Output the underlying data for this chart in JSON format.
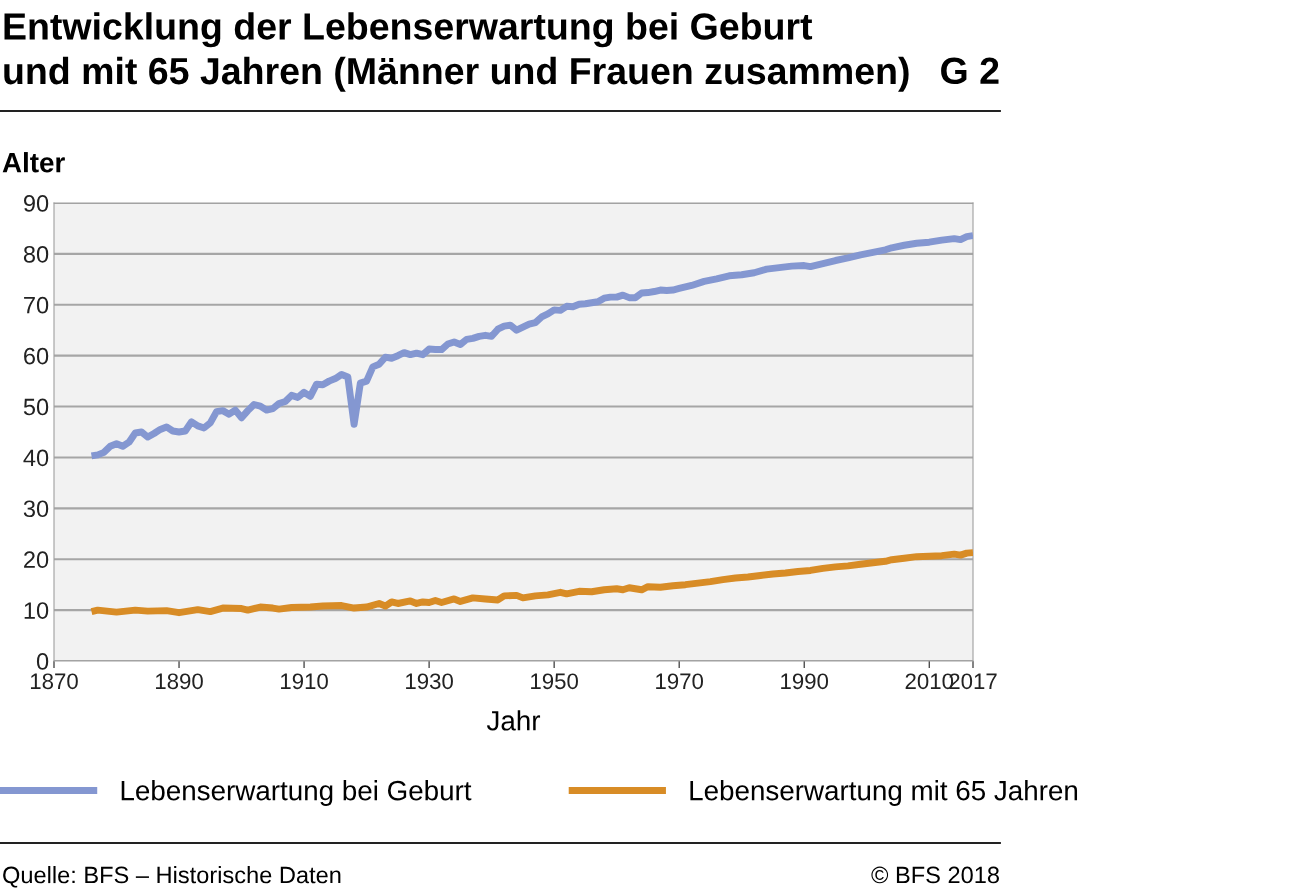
{
  "chart_data": {
    "type": "line",
    "title": "Entwicklung der Lebenserwartung bei Geburt\nund mit 65 Jahren (Männer und Frauen zusammen)",
    "xlabel": "Jahr",
    "ylabel": "Alter",
    "annotations": [
      "G 2",
      "Quelle: BFS – Historische Daten",
      "© BFS 2018"
    ],
    "xlim": [
      1870,
      2017
    ],
    "xticks": [
      1870,
      1890,
      1910,
      1930,
      1950,
      1970,
      1990,
      2010,
      2017
    ],
    "ylim": [
      0,
      90
    ],
    "yticks": [
      0,
      10,
      20,
      30,
      40,
      50,
      60,
      70,
      80,
      90
    ],
    "grid": "y",
    "legend": "bottom",
    "marker": "none",
    "line_style": "solid",
    "series": [
      {
        "name": "Lebenserwartung bei Geburt",
        "color": "#8497d1",
        "x": [
          1876,
          1877,
          1878,
          1879,
          1880,
          1881,
          1882,
          1883,
          1884,
          1885,
          1886,
          1887,
          1888,
          1889,
          1890,
          1891,
          1892,
          1893,
          1894,
          1895,
          1896,
          1897,
          1898,
          1899,
          1900,
          1901,
          1902,
          1903,
          1904,
          1905,
          1906,
          1907,
          1908,
          1909,
          1910,
          1911,
          1912,
          1913,
          1914,
          1915,
          1916,
          1917,
          1918,
          1919,
          1920,
          1921,
          1922,
          1923,
          1924,
          1925,
          1926,
          1927,
          1928,
          1929,
          1930,
          1931,
          1932,
          1933,
          1934,
          1935,
          1936,
          1937,
          1938,
          1939,
          1940,
          1941,
          1942,
          1943,
          1944,
          1945,
          1946,
          1947,
          1948,
          1949,
          1950,
          1951,
          1952,
          1953,
          1954,
          1955,
          1956,
          1957,
          1958,
          1959,
          1960,
          1961,
          1962,
          1963,
          1964,
          1965,
          1966,
          1967,
          1968,
          1969,
          1970,
          1972,
          1974,
          1976,
          1978,
          1980,
          1982,
          1984,
          1986,
          1988,
          1990,
          1991,
          1993,
          1995,
          1997,
          1999,
          2001,
          2003,
          2004,
          2006,
          2008,
          2010,
          2012,
          2014,
          2015,
          2016,
          2017
        ],
        "values": [
          40.3,
          40.5,
          41,
          42.2,
          42.7,
          42.2,
          43,
          44.8,
          45,
          44,
          44.7,
          45.5,
          46,
          45.2,
          45,
          45.2,
          47,
          46.2,
          45.8,
          46.8,
          49,
          49.2,
          48.5,
          49.3,
          47.8,
          49.2,
          50.4,
          50.1,
          49.3,
          49.6,
          50.6,
          51,
          52.2,
          51.8,
          52.8,
          52,
          54.4,
          54.3,
          55,
          55.5,
          56.3,
          55.8,
          46.5,
          54.6,
          55,
          57.8,
          58.3,
          59.7,
          59.5,
          60,
          60.6,
          60.2,
          60.5,
          60.2,
          61.3,
          61.2,
          61.2,
          62.3,
          62.7,
          62.2,
          63.2,
          63.4,
          63.8,
          64,
          63.8,
          65.2,
          65.8,
          66,
          65,
          65.6,
          66.2,
          66.5,
          67.6,
          68.2,
          69,
          68.9,
          69.7,
          69.6,
          70.1,
          70.2,
          70.4,
          70.6,
          71.3,
          71.5,
          71.5,
          71.9,
          71.4,
          71.4,
          72.3,
          72.4,
          72.6,
          72.9,
          72.8,
          72.9,
          73.2,
          73.8,
          74.6,
          75.1,
          75.7,
          75.9,
          76.3,
          77,
          77.3,
          77.6,
          77.7,
          77.5,
          78.1,
          78.7,
          79.2,
          79.8,
          80.3,
          80.8,
          81.2,
          81.7,
          82.1,
          82.3,
          82.7,
          83,
          82.8,
          83.4,
          83.6
        ]
      },
      {
        "name": "Lebenserwartung mit 65 Jahren",
        "color": "#d88c26",
        "x": [
          1876,
          1877,
          1880,
          1883,
          1885,
          1888,
          1890,
          1893,
          1895,
          1897,
          1900,
          1901,
          1903,
          1905,
          1906,
          1908,
          1911,
          1913,
          1916,
          1918,
          1920,
          1922,
          1923,
          1924,
          1925,
          1927,
          1928,
          1929,
          1930,
          1931,
          1932,
          1934,
          1935,
          1937,
          1939,
          1941,
          1942,
          1944,
          1945,
          1947,
          1949,
          1951,
          1952,
          1954,
          1956,
          1958,
          1960,
          1961,
          1962,
          1964,
          1965,
          1967,
          1969,
          1971,
          1973,
          1975,
          1977,
          1979,
          1981,
          1983,
          1985,
          1987,
          1989,
          1991,
          1993,
          1995,
          1997,
          1999,
          2001,
          2003,
          2004,
          2006,
          2008,
          2010,
          2012,
          2014,
          2015,
          2016,
          2017
        ],
        "values": [
          9.7,
          10,
          9.6,
          10,
          9.8,
          9.9,
          9.5,
          10.1,
          9.7,
          10.4,
          10.3,
          10,
          10.6,
          10.4,
          10.2,
          10.5,
          10.6,
          10.8,
          10.9,
          10.4,
          10.6,
          11.3,
          10.8,
          11.6,
          11.3,
          11.8,
          11.3,
          11.6,
          11.5,
          11.9,
          11.5,
          12.2,
          11.7,
          12.4,
          12.2,
          12,
          12.8,
          12.9,
          12.4,
          12.8,
          13,
          13.5,
          13.2,
          13.7,
          13.6,
          14,
          14.2,
          14,
          14.4,
          14,
          14.6,
          14.5,
          14.8,
          15,
          15.3,
          15.6,
          16,
          16.3,
          16.5,
          16.8,
          17.1,
          17.3,
          17.6,
          17.8,
          18.2,
          18.5,
          18.7,
          19,
          19.3,
          19.6,
          19.9,
          20.2,
          20.5,
          20.6,
          20.7,
          21,
          20.8,
          21.2,
          21.3
        ]
      }
    ]
  }
}
